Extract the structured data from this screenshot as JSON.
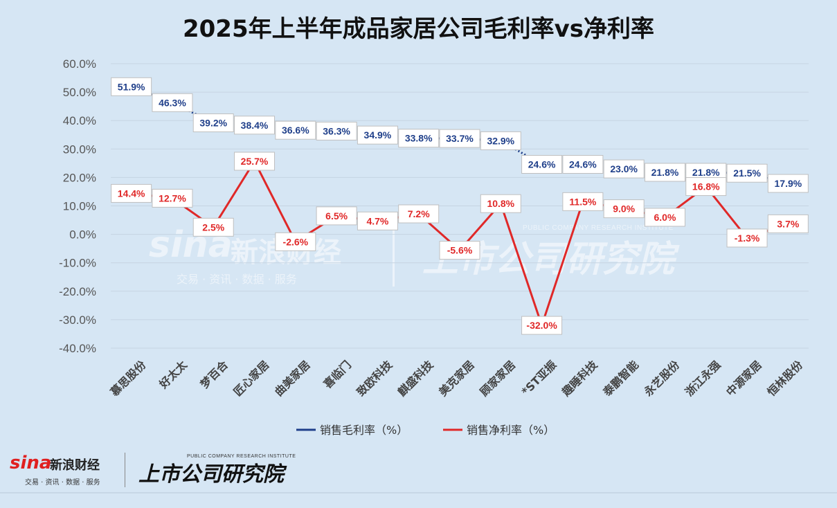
{
  "chart_data": {
    "type": "line",
    "title": "2025年上半年成品家居公司毛利率vs净利率",
    "categories": [
      "慕思股份",
      "好太太",
      "梦百合",
      "匠心家居",
      "曲美家居",
      "喜临门",
      "致欧科技",
      "麒盛科技",
      "美克家居",
      "顾家家居",
      "*ST亚振",
      "趣睡科技",
      "泰鹏智能",
      "永艺股份",
      "浙江永强",
      "中源家居",
      "恒林股份"
    ],
    "yticks": [
      "60.0%",
      "50.0%",
      "40.0%",
      "30.0%",
      "20.0%",
      "10.0%",
      "0.0%",
      "-10.0%",
      "-20.0%",
      "-30.0%",
      "-40.0%"
    ],
    "ylim": [
      -40,
      60
    ],
    "grid": true,
    "legend_position": "bottom",
    "series": [
      {
        "name": "销售毛利率（%）",
        "color": "#1f3f8a",
        "line_style": "dotted",
        "values": [
          51.9,
          46.3,
          39.2,
          38.4,
          36.6,
          36.3,
          34.9,
          33.8,
          33.7,
          32.9,
          24.6,
          24.6,
          23.0,
          21.8,
          21.8,
          21.5,
          17.9
        ],
        "labels": [
          "51.9%",
          "46.3%",
          "39.2%",
          "38.4%",
          "36.6%",
          "36.3%",
          "34.9%",
          "33.8%",
          "33.7%",
          "32.9%",
          "24.6%",
          "24.6%",
          "23.0%",
          "21.8%",
          "21.8%",
          "21.5%",
          "17.9%"
        ]
      },
      {
        "name": "销售净利率（%）",
        "color": "#e02828",
        "line_style": "solid",
        "values": [
          14.4,
          12.7,
          2.5,
          25.7,
          -2.6,
          6.5,
          4.7,
          7.2,
          -5.6,
          10.8,
          -32.0,
          11.5,
          9.0,
          6.0,
          16.8,
          -1.3,
          3.7
        ],
        "labels": [
          "14.4%",
          "12.7%",
          "2.5%",
          "25.7%",
          "-2.6%",
          "6.5%",
          "4.7%",
          "7.2%",
          "-5.6%",
          "10.8%",
          "-32.0%",
          "11.5%",
          "9.0%",
          "6.0%",
          "16.8%",
          "-1.3%",
          "3.7%"
        ]
      }
    ]
  },
  "watermark": {
    "brand": "sina",
    "brand_cn": "新浪财经",
    "tagline": "交易 · 资讯 · 数据 · 服务",
    "research": "上市公司研究院",
    "research_en": "PUBLIC COMPANY RESEARCH INSTITUTE"
  },
  "footer": {
    "brand": "sina",
    "brand_cn": "新浪财经",
    "tagline": "交易 · 资讯 · 数据 · 服务",
    "research": "上市公司研究院",
    "research_en": "PUBLIC COMPANY RESEARCH INSTITUTE"
  }
}
